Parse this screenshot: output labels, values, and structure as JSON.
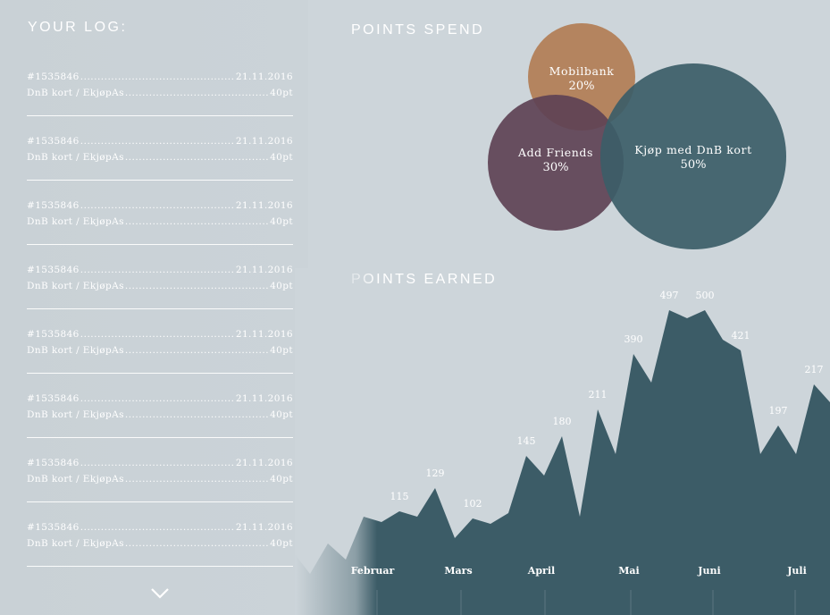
{
  "sidebar": {
    "title": "YOUR LOG:",
    "entries": [
      {
        "id": "#1535846",
        "date": "21.11.2016",
        "desc": "DnB kort / EkjøpAs",
        "points": "40pt"
      },
      {
        "id": "#1535846",
        "date": "21.11.2016",
        "desc": "DnB kort / EkjøpAs",
        "points": "40pt"
      },
      {
        "id": "#1535846",
        "date": "21.11.2016",
        "desc": "DnB kort / EkjøpAs",
        "points": "40pt"
      },
      {
        "id": "#1535846",
        "date": "21.11.2016",
        "desc": "DnB kort / EkjøpAs",
        "points": "40pt"
      },
      {
        "id": "#1535846",
        "date": "21.11.2016",
        "desc": "DnB kort / EkjøpAs",
        "points": "40pt"
      },
      {
        "id": "#1535846",
        "date": "21.11.2016",
        "desc": "DnB kort / EkjøpAs",
        "points": "40pt"
      },
      {
        "id": "#1535846",
        "date": "21.11.2016",
        "desc": "DnB kort / EkjøpAs",
        "points": "40pt"
      },
      {
        "id": "#1535846",
        "date": "21.11.2016",
        "desc": "DnB kort / EkjøpAs",
        "points": "40pt"
      }
    ],
    "scroll_icon": "chevron-down-icon"
  },
  "points_spend": {
    "title": "POINTS SPEND",
    "segments": [
      {
        "label": "Mobilbank",
        "value": "20%",
        "color": "#b4845f"
      },
      {
        "label": "Add Friends",
        "value": "30%",
        "color": "#5e4255"
      },
      {
        "label": "Kjøp med DnB kort",
        "value": "50%",
        "color": "#3c5d68"
      }
    ]
  },
  "points_earned": {
    "title": "POINTS EARNED",
    "color": "#3c5c67"
  },
  "chart_data": {
    "type": "area",
    "title": "POINTS EARNED",
    "month_labels": [
      "Februar",
      "Mars",
      "April",
      "Mai",
      "Juni",
      "Juli"
    ],
    "points": [
      {
        "label": ""
      },
      {
        "label": ""
      },
      {
        "label": ""
      },
      {
        "label": ""
      },
      {
        "label": ""
      },
      {
        "label": ""
      },
      {
        "label": ""
      },
      {
        "label": "115"
      },
      {
        "label": ""
      },
      {
        "label": "129"
      },
      {
        "label": ""
      },
      {
        "label": "102"
      },
      {
        "label": ""
      },
      {
        "label": ""
      },
      {
        "label": "145"
      },
      {
        "label": ""
      },
      {
        "label": "180"
      },
      {
        "label": ""
      },
      {
        "label": "211"
      },
      {
        "label": ""
      },
      {
        "label": "390"
      },
      {
        "label": ""
      },
      {
        "label": "497"
      },
      {
        "label": ""
      },
      {
        "label": "500"
      },
      {
        "label": ""
      },
      {
        "label": "421"
      },
      {
        "label": ""
      },
      {
        "label": "197"
      },
      {
        "label": ""
      },
      {
        "label": "217"
      },
      {
        "label": ""
      }
    ]
  }
}
